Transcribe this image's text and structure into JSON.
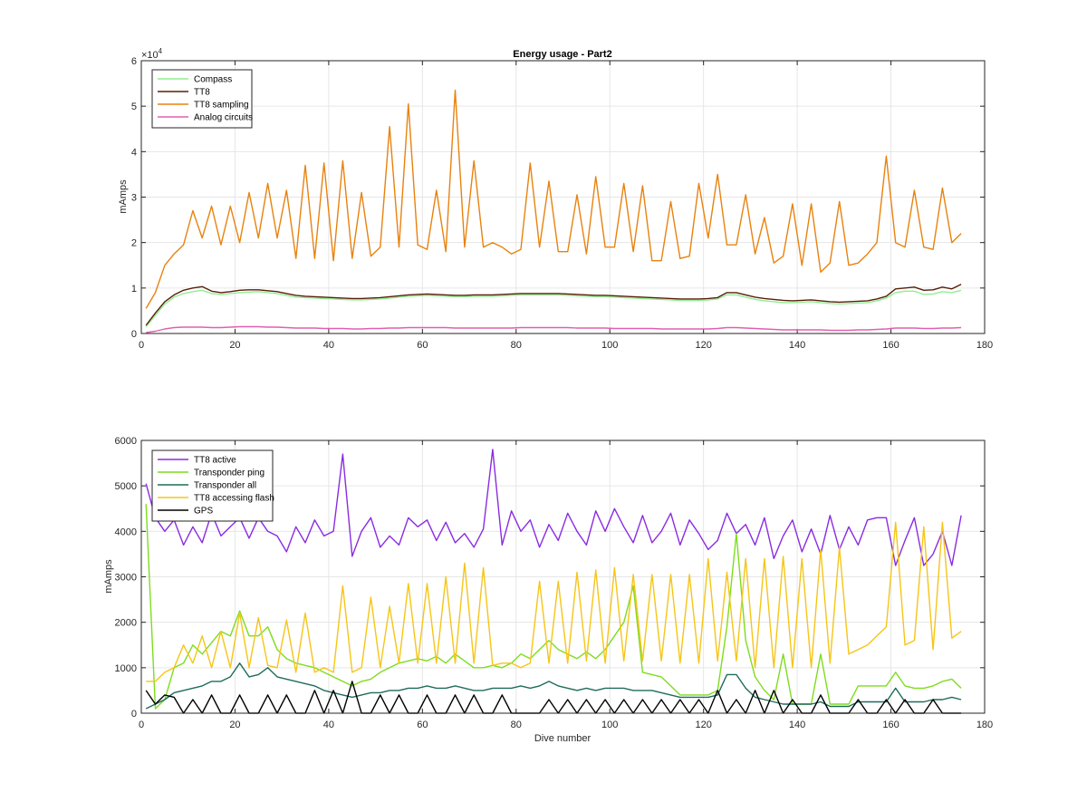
{
  "figure": {
    "title": "Energy usage - Part2"
  },
  "chart_data": [
    {
      "type": "line",
      "title": "Energy usage - Part2",
      "xlabel": "",
      "ylabel": "mAmps",
      "exponent_label": "×10",
      "exponent_power": "4",
      "xlim": [
        0,
        180
      ],
      "ylim": [
        0,
        60000
      ],
      "xticks": [
        "0",
        "20",
        "40",
        "60",
        "80",
        "100",
        "120",
        "140",
        "160",
        "180"
      ],
      "yticks": [
        "0",
        "1",
        "2",
        "3",
        "4",
        "5",
        "6"
      ],
      "grid": true,
      "legend_position": "top-left",
      "x": [
        1,
        3,
        5,
        7,
        9,
        11,
        13,
        15,
        17,
        19,
        21,
        23,
        25,
        27,
        29,
        31,
        33,
        35,
        37,
        39,
        41,
        43,
        45,
        47,
        49,
        51,
        53,
        55,
        57,
        59,
        61,
        63,
        65,
        67,
        69,
        71,
        73,
        75,
        77,
        79,
        81,
        83,
        85,
        87,
        89,
        91,
        93,
        95,
        97,
        99,
        101,
        103,
        105,
        107,
        109,
        111,
        113,
        115,
        117,
        119,
        121,
        123,
        125,
        127,
        129,
        131,
        133,
        135,
        137,
        139,
        141,
        143,
        145,
        147,
        149,
        151,
        153,
        155,
        157,
        159,
        161,
        163,
        165,
        167,
        169,
        171,
        173,
        175
      ],
      "series": [
        {
          "name": "Compass",
          "color": "#90ee90",
          "values": [
            1500,
            4000,
            6500,
            8000,
            8800,
            9200,
            9500,
            8800,
            8600,
            8800,
            9000,
            9100,
            9200,
            9000,
            8800,
            8400,
            8000,
            7900,
            7800,
            7700,
            7600,
            7500,
            7400,
            7400,
            7500,
            7600,
            7800,
            8000,
            8200,
            8300,
            8400,
            8300,
            8200,
            8100,
            8100,
            8200,
            8200,
            8200,
            8300,
            8400,
            8500,
            8500,
            8500,
            8500,
            8500,
            8400,
            8300,
            8200,
            8100,
            8100,
            8000,
            7900,
            7800,
            7700,
            7600,
            7500,
            7400,
            7300,
            7300,
            7300,
            7400,
            7600,
            8500,
            8500,
            8000,
            7500,
            7200,
            7000,
            6800,
            6800,
            6900,
            7000,
            6800,
            6600,
            6500,
            6600,
            6700,
            6800,
            7200,
            7800,
            9000,
            9300,
            9300,
            8600,
            8700,
            9200,
            9000,
            9500
          ]
        },
        {
          "name": "TT8",
          "color": "#5a1e0a",
          "values": [
            1800,
            4500,
            7000,
            8500,
            9500,
            10000,
            10300,
            9300,
            9000,
            9200,
            9500,
            9600,
            9600,
            9400,
            9200,
            8800,
            8400,
            8200,
            8100,
            8000,
            7900,
            7800,
            7700,
            7700,
            7800,
            7900,
            8100,
            8300,
            8500,
            8600,
            8700,
            8600,
            8500,
            8400,
            8400,
            8500,
            8500,
            8500,
            8600,
            8700,
            8800,
            8800,
            8800,
            8800,
            8800,
            8700,
            8600,
            8500,
            8400,
            8400,
            8300,
            8200,
            8100,
            8000,
            7900,
            7800,
            7700,
            7600,
            7600,
            7600,
            7700,
            7900,
            9000,
            9000,
            8500,
            8000,
            7700,
            7500,
            7300,
            7200,
            7300,
            7400,
            7200,
            7000,
            6900,
            7000,
            7100,
            7200,
            7600,
            8200,
            9800,
            10000,
            10200,
            9500,
            9600,
            10200,
            9800,
            10800
          ]
        },
        {
          "name": "TT8 sampling",
          "color": "#e8820e",
          "values": [
            5500,
            9000,
            15000,
            17500,
            19500,
            27000,
            21000,
            28000,
            19500,
            28000,
            20000,
            31000,
            21000,
            33000,
            21000,
            31500,
            16500,
            37000,
            16500,
            37500,
            16000,
            38000,
            16500,
            31000,
            17000,
            19000,
            45500,
            19000,
            50500,
            19500,
            18500,
            31500,
            18000,
            53500,
            19000,
            38000,
            19000,
            20000,
            19000,
            17500,
            18500,
            37500,
            19000,
            33500,
            18000,
            18000,
            30500,
            17500,
            34500,
            19000,
            19000,
            33000,
            18000,
            32500,
            16000,
            16000,
            29000,
            16500,
            17000,
            33000,
            21000,
            35000,
            19500,
            19500,
            30500,
            17500,
            25500,
            15500,
            17000,
            28500,
            15000,
            28500,
            13500,
            15500,
            29000,
            15000,
            15500,
            17500,
            20000,
            39000,
            20000,
            19000,
            31500,
            19000,
            18500,
            32000,
            20000,
            22000
          ]
        },
        {
          "name": "Analog circuits",
          "color": "#e060b0",
          "values": [
            200,
            500,
            1000,
            1300,
            1400,
            1400,
            1400,
            1300,
            1300,
            1400,
            1500,
            1500,
            1500,
            1400,
            1400,
            1300,
            1200,
            1200,
            1200,
            1100,
            1100,
            1100,
            1000,
            1000,
            1100,
            1100,
            1200,
            1200,
            1300,
            1300,
            1300,
            1300,
            1300,
            1200,
            1200,
            1200,
            1200,
            1200,
            1200,
            1200,
            1300,
            1300,
            1300,
            1300,
            1300,
            1300,
            1200,
            1200,
            1200,
            1200,
            1100,
            1100,
            1100,
            1100,
            1100,
            1000,
            1000,
            1000,
            1000,
            1000,
            1000,
            1100,
            1300,
            1300,
            1200,
            1100,
            1000,
            900,
            800,
            800,
            800,
            800,
            800,
            700,
            700,
            700,
            800,
            800,
            900,
            1000,
            1200,
            1200,
            1200,
            1100,
            1100,
            1200,
            1200,
            1300
          ]
        }
      ]
    },
    {
      "type": "line",
      "title": "",
      "xlabel": "Dive number",
      "ylabel": "mAmps",
      "xlim": [
        0,
        180
      ],
      "ylim": [
        0,
        6000
      ],
      "xticks": [
        "0",
        "20",
        "40",
        "60",
        "80",
        "100",
        "120",
        "140",
        "160",
        "180"
      ],
      "yticks": [
        "0",
        "1000",
        "2000",
        "3000",
        "4000",
        "5000",
        "6000"
      ],
      "grid": true,
      "legend_position": "top-left",
      "x": [
        1,
        3,
        5,
        7,
        9,
        11,
        13,
        15,
        17,
        19,
        21,
        23,
        25,
        27,
        29,
        31,
        33,
        35,
        37,
        39,
        41,
        43,
        45,
        47,
        49,
        51,
        53,
        55,
        57,
        59,
        61,
        63,
        65,
        67,
        69,
        71,
        73,
        75,
        77,
        79,
        81,
        83,
        85,
        87,
        89,
        91,
        93,
        95,
        97,
        99,
        101,
        103,
        105,
        107,
        109,
        111,
        113,
        115,
        117,
        119,
        121,
        123,
        125,
        127,
        129,
        131,
        133,
        135,
        137,
        139,
        141,
        143,
        145,
        147,
        149,
        151,
        153,
        155,
        157,
        159,
        161,
        163,
        165,
        167,
        169,
        171,
        173,
        175
      ],
      "series": [
        {
          "name": "TT8 active",
          "color": "#8a2be2",
          "values": [
            5050,
            4300,
            4000,
            4250,
            3700,
            4100,
            3750,
            4400,
            3900,
            4100,
            4300,
            3850,
            4300,
            4000,
            3900,
            3550,
            4100,
            3750,
            4250,
            3900,
            4000,
            5700,
            3450,
            4000,
            4300,
            3650,
            3900,
            3700,
            4300,
            4100,
            4250,
            3800,
            4200,
            3750,
            3950,
            3650,
            4050,
            5800,
            3700,
            4450,
            4000,
            4250,
            3650,
            4150,
            3800,
            4400,
            4000,
            3700,
            4450,
            4000,
            4500,
            4100,
            3750,
            4350,
            3750,
            4000,
            4400,
            3700,
            4250,
            3950,
            3600,
            3800,
            4400,
            3950,
            4150,
            3700,
            4300,
            3400,
            3900,
            4250,
            3550,
            4050,
            3500,
            4350,
            3600,
            4100,
            3700,
            4250,
            4300,
            4300,
            3250,
            3800,
            4300,
            3250,
            3500,
            4000,
            3250,
            4350
          ]
        },
        {
          "name": "Transponder ping",
          "color": "#7fdc1e",
          "values": [
            4600,
            100,
            300,
            1000,
            1100,
            1500,
            1300,
            1550,
            1800,
            1700,
            2250,
            1700,
            1700,
            1900,
            1400,
            1200,
            1100,
            1050,
            1000,
            900,
            800,
            700,
            600,
            700,
            750,
            900,
            1000,
            1100,
            1150,
            1200,
            1150,
            1250,
            1100,
            1300,
            1150,
            1000,
            1000,
            1050,
            1000,
            1100,
            1300,
            1200,
            1400,
            1600,
            1400,
            1300,
            1200,
            1350,
            1200,
            1400,
            1700,
            2000,
            2800,
            900,
            850,
            800,
            600,
            400,
            400,
            400,
            400,
            500,
            1900,
            3950,
            1600,
            800,
            500,
            300,
            1300,
            200,
            200,
            200,
            1300,
            200,
            200,
            200,
            600,
            600,
            600,
            600,
            900,
            600,
            550,
            550,
            600,
            700,
            750,
            550
          ]
        },
        {
          "name": "Transponder all",
          "color": "#1f6b5a",
          "values": [
            100,
            200,
            300,
            450,
            500,
            550,
            600,
            700,
            700,
            800,
            1100,
            800,
            850,
            1000,
            800,
            750,
            700,
            650,
            600,
            500,
            450,
            400,
            350,
            400,
            450,
            450,
            500,
            500,
            550,
            550,
            600,
            550,
            550,
            600,
            550,
            500,
            500,
            550,
            550,
            550,
            600,
            550,
            600,
            700,
            600,
            550,
            500,
            550,
            500,
            550,
            550,
            550,
            500,
            500,
            500,
            450,
            400,
            350,
            350,
            350,
            350,
            400,
            850,
            850,
            550,
            350,
            300,
            250,
            200,
            200,
            200,
            200,
            250,
            150,
            150,
            150,
            250,
            250,
            250,
            250,
            550,
            250,
            250,
            250,
            300,
            300,
            350,
            300
          ]
        },
        {
          "name": "TT8 accessing flash",
          "color": "#f5c518",
          "values": [
            700,
            700,
            900,
            1000,
            1500,
            1100,
            1700,
            1000,
            1800,
            1000,
            2200,
            1000,
            2100,
            1050,
            1000,
            2050,
            900,
            2200,
            900,
            1000,
            900,
            2800,
            900,
            1000,
            2550,
            1000,
            2350,
            1100,
            2850,
            1100,
            2850,
            1100,
            3000,
            1100,
            3300,
            1100,
            3200,
            1050,
            1100,
            1100,
            1000,
            1100,
            2900,
            1100,
            2900,
            1100,
            3100,
            1150,
            3150,
            1100,
            3200,
            1150,
            3050,
            1150,
            3050,
            1150,
            3050,
            1100,
            3050,
            1100,
            3400,
            1150,
            3100,
            1150,
            3400,
            1000,
            3400,
            1000,
            3450,
            1000,
            3400,
            1000,
            3600,
            1100,
            3650,
            1300,
            1400,
            1500,
            1700,
            1900,
            4200,
            1500,
            1600,
            4100,
            1400,
            4200,
            1650,
            1800
          ]
        },
        {
          "name": "GPS",
          "color": "#000000",
          "values": [
            500,
            200,
            400,
            350,
            0,
            300,
            0,
            400,
            0,
            0,
            400,
            0,
            0,
            400,
            0,
            400,
            0,
            0,
            500,
            0,
            500,
            0,
            700,
            0,
            0,
            400,
            0,
            400,
            0,
            0,
            400,
            0,
            0,
            400,
            0,
            400,
            0,
            0,
            400,
            0,
            0,
            0,
            0,
            300,
            0,
            300,
            0,
            300,
            0,
            300,
            0,
            300,
            0,
            300,
            0,
            300,
            0,
            300,
            0,
            300,
            0,
            500,
            0,
            300,
            0,
            500,
            0,
            500,
            0,
            300,
            0,
            0,
            400,
            0,
            0,
            0,
            300,
            0,
            0,
            300,
            0,
            300,
            0,
            0,
            300,
            0,
            0,
            0
          ]
        }
      ]
    }
  ]
}
